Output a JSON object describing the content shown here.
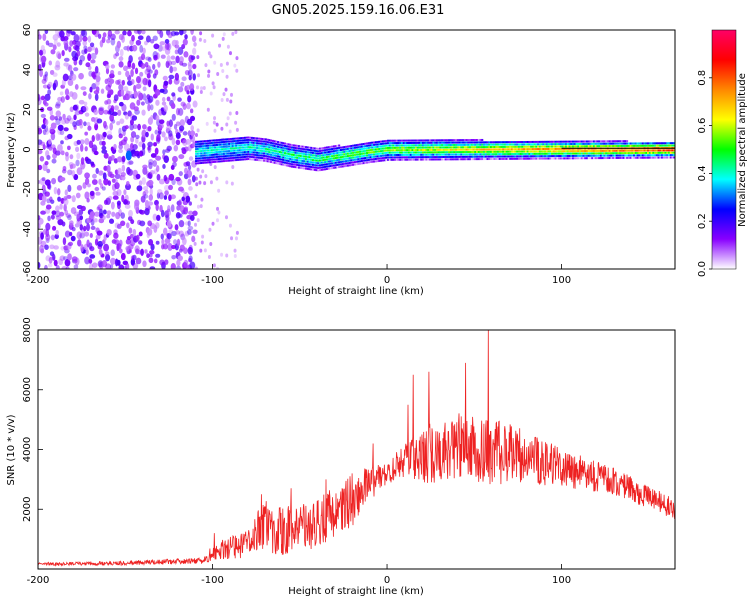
{
  "title": "GN05.2025.159.16.06.E31",
  "chart_data": [
    {
      "type": "heatmap",
      "xlabel": "Height of straight line (km)",
      "ylabel": "Frequency (Hz)",
      "xlim": [
        -200,
        165
      ],
      "ylim": [
        -60,
        60
      ],
      "x_ticks": [
        "-200",
        "-100",
        "0",
        "100"
      ],
      "y_ticks": [
        "-60",
        "-40",
        "-20",
        "0",
        "20",
        "40",
        "60"
      ],
      "colorbar": {
        "label": "Normalized spectral amplitude",
        "range": [
          0.0,
          1.0
        ],
        "ticks": [
          "0.0",
          "0.2",
          "0.4",
          "0.6",
          "0.8"
        ],
        "colors": [
          "#ffffff",
          "#8800ff",
          "#0000ff",
          "#00ffff",
          "#00ff00",
          "#ffff00",
          "#ff8800",
          "#ff0000",
          "#ff0066"
        ]
      },
      "features": {
        "noise_region_x": [
          -200,
          -110
        ],
        "sparse_noise_x": [
          -110,
          -85
        ],
        "signal_band_x": [
          -110,
          165
        ],
        "signal_center_hz": [
          {
            "x": -110,
            "y": -1
          },
          {
            "x": -80,
            "y": 1
          },
          {
            "x": -70,
            "y": 0
          },
          {
            "x": -55,
            "y": -3
          },
          {
            "x": -40,
            "y": -5
          },
          {
            "x": -25,
            "y": -3
          },
          {
            "x": -10,
            "y": -1
          },
          {
            "x": 0,
            "y": 0
          },
          {
            "x": 165,
            "y": 0
          }
        ]
      }
    },
    {
      "type": "line",
      "xlabel": "Height of straight line (km)",
      "ylabel": "SNR (10 * v/v)",
      "xlim": [
        -200,
        165
      ],
      "ylim": [
        0,
        8000
      ],
      "x_ticks": [
        "-200",
        "-100",
        "0",
        "100"
      ],
      "y_ticks": [
        "2000",
        "4000",
        "6000",
        "8000"
      ],
      "series": [
        {
          "color": "#ee2222",
          "envelope": [
            {
              "x": -200,
              "base": 150,
              "spread": 100
            },
            {
              "x": -150,
              "base": 180,
              "spread": 140
            },
            {
              "x": -105,
              "base": 250,
              "spread": 200
            },
            {
              "x": -100,
              "base": 500,
              "spread": 600
            },
            {
              "x": -80,
              "base": 700,
              "spread": 900
            },
            {
              "x": -70,
              "base": 1200,
              "spread": 1800
            },
            {
              "x": -60,
              "base": 1000,
              "spread": 1600
            },
            {
              "x": -40,
              "base": 1300,
              "spread": 1700
            },
            {
              "x": -20,
              "base": 2000,
              "spread": 1800
            },
            {
              "x": -10,
              "base": 2700,
              "spread": 1200
            },
            {
              "x": 0,
              "base": 3100,
              "spread": 800
            },
            {
              "x": 10,
              "base": 3400,
              "spread": 1200
            },
            {
              "x": 20,
              "base": 3500,
              "spread": 2000
            },
            {
              "x": 40,
              "base": 3800,
              "spread": 2200
            },
            {
              "x": 60,
              "base": 3600,
              "spread": 2200
            },
            {
              "x": 80,
              "base": 3500,
              "spread": 1800
            },
            {
              "x": 100,
              "base": 3200,
              "spread": 1300
            },
            {
              "x": 130,
              "base": 2800,
              "spread": 900
            },
            {
              "x": 165,
              "base": 1900,
              "spread": 700
            }
          ],
          "peaks": [
            {
              "x": -99,
              "y": 1200
            },
            {
              "x": -72,
              "y": 2500
            },
            {
              "x": -55,
              "y": 2700
            },
            {
              "x": -35,
              "y": 3000
            },
            {
              "x": -20,
              "y": 3200
            },
            {
              "x": -8,
              "y": 4200
            },
            {
              "x": 12,
              "y": 5500
            },
            {
              "x": 15,
              "y": 6500
            },
            {
              "x": 24,
              "y": 6600
            },
            {
              "x": 58,
              "y": 8000
            },
            {
              "x": 45,
              "y": 6900
            }
          ]
        }
      ]
    }
  ]
}
